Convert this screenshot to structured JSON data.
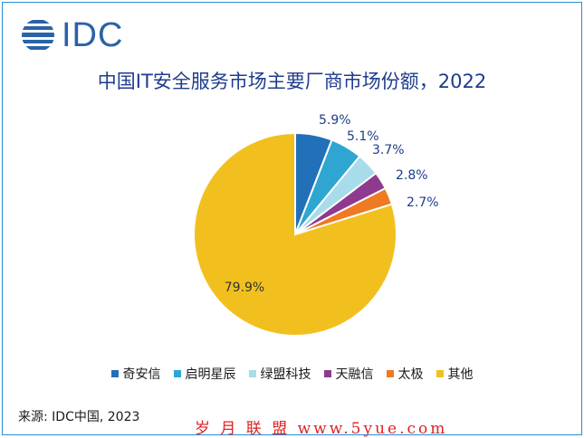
{
  "logo": {
    "text": "IDC"
  },
  "chart_data": {
    "type": "pie",
    "title": "中国IT安全服务市场主要厂商市场份额，2022",
    "slices": [
      {
        "name": "奇安信",
        "value": 5.9,
        "label": "5.9%",
        "color": "#2270b8"
      },
      {
        "name": "启明星辰",
        "value": 5.1,
        "label": "5.1%",
        "color": "#2ea6d1"
      },
      {
        "name": "绿盟科技",
        "value": 3.7,
        "label": "3.7%",
        "color": "#a8dcea"
      },
      {
        "name": "天融信",
        "value": 2.8,
        "label": "2.8%",
        "color": "#8e3a8f"
      },
      {
        "name": "太极",
        "value": 2.7,
        "label": "2.7%",
        "color": "#ee7a22"
      },
      {
        "name": "其他",
        "value": 79.9,
        "label": "79.9%",
        "color": "#f2c01e"
      }
    ],
    "legend_position": "bottom"
  },
  "source": "来源: IDC中国, 2023",
  "watermark": "岁 月 联 盟   www.5yue.com"
}
